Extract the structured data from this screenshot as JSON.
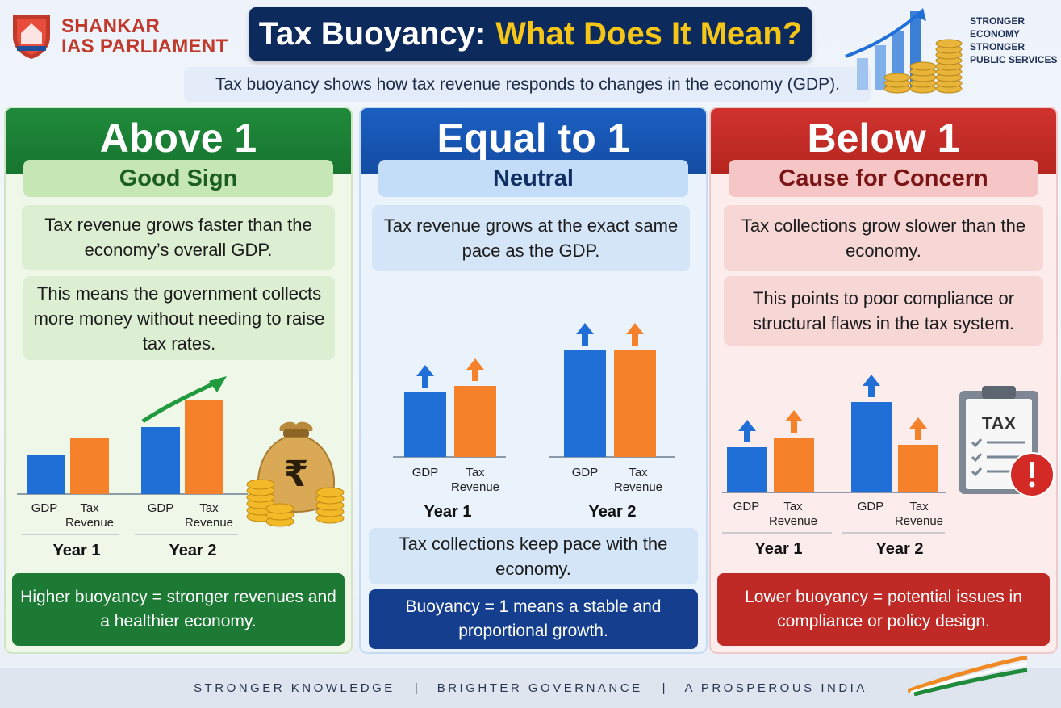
{
  "header": {
    "logo_line1": "SHANKAR",
    "logo_line2": "IAS PARLIAMENT",
    "title_main": "Tax Buoyancy:",
    "title_accent": "What Does It Mean?",
    "subtitle": "Tax buoyancy shows how tax revenue responds to changes in the economy (GDP).",
    "slogan": [
      "STRONGER",
      "ECONOMY",
      "STRONGER",
      "PUBLIC SERVICES"
    ]
  },
  "panels": [
    {
      "title": "Above 1",
      "ribbon": "Good Sign",
      "text1": "Tax revenue grows faster than the economy’s overall GDP.",
      "text2": "This means the government collects more money without needing to raise tax rates.",
      "bottom": "Higher buoyancy = stronger revenues and a healthier economy."
    },
    {
      "title": "Equal to 1",
      "ribbon": "Neutral",
      "text1": "Tax revenue grows at the exact same pace as the GDP.",
      "text2": "Tax collections keep pace with the economy.",
      "bottom": "Buoyancy = 1 means a stable and proportional growth."
    },
    {
      "title": "Below 1",
      "ribbon": "Cause for Concern",
      "text1": "Tax collections grow slower than the economy.",
      "text2": "This points to poor compliance or structural flaws in the tax system.",
      "bottom": "Lower buoyancy = potential issues in compliance or policy design."
    }
  ],
  "chart_labels": {
    "gdp": "GDP",
    "tax_line1": "Tax",
    "tax_line2": "Revenue",
    "year1": "Year 1",
    "year2": "Year 2",
    "tax_sign": "TAX",
    "rupee": "₹"
  },
  "chart_data": [
    {
      "type": "bar",
      "categories": [
        "Year 1",
        "Year 2"
      ],
      "series": [
        {
          "name": "GDP",
          "values": [
            48,
            83
          ]
        },
        {
          "name": "Tax Revenue",
          "values": [
            70,
            116
          ]
        }
      ]
    },
    {
      "type": "bar",
      "categories": [
        "Year 1",
        "Year 2"
      ],
      "series": [
        {
          "name": "GDP",
          "values": [
            80,
            132
          ]
        },
        {
          "name": "Tax Revenue",
          "values": [
            88,
            132
          ]
        }
      ]
    },
    {
      "type": "bar",
      "categories": [
        "Year 1",
        "Year 2"
      ],
      "series": [
        {
          "name": "GDP",
          "values": [
            56,
            112
          ]
        },
        {
          "name": "Tax Revenue",
          "values": [
            68,
            59
          ]
        }
      ]
    }
  ],
  "footer": {
    "item1": "STRONGER KNOWLEDGE",
    "item2": "BRIGHTER GOVERNANCE",
    "item3": "A PROSPEROUS INDIA",
    "sep": "|"
  },
  "colors": {
    "gdp_bar": "#1f6fd6",
    "tax_bar": "#f5822a",
    "green": "#1c7a34",
    "blue": "#153f8e",
    "red": "#c02a26",
    "title_bg": "#0d2a5c",
    "title_accent": "#f5c518"
  }
}
